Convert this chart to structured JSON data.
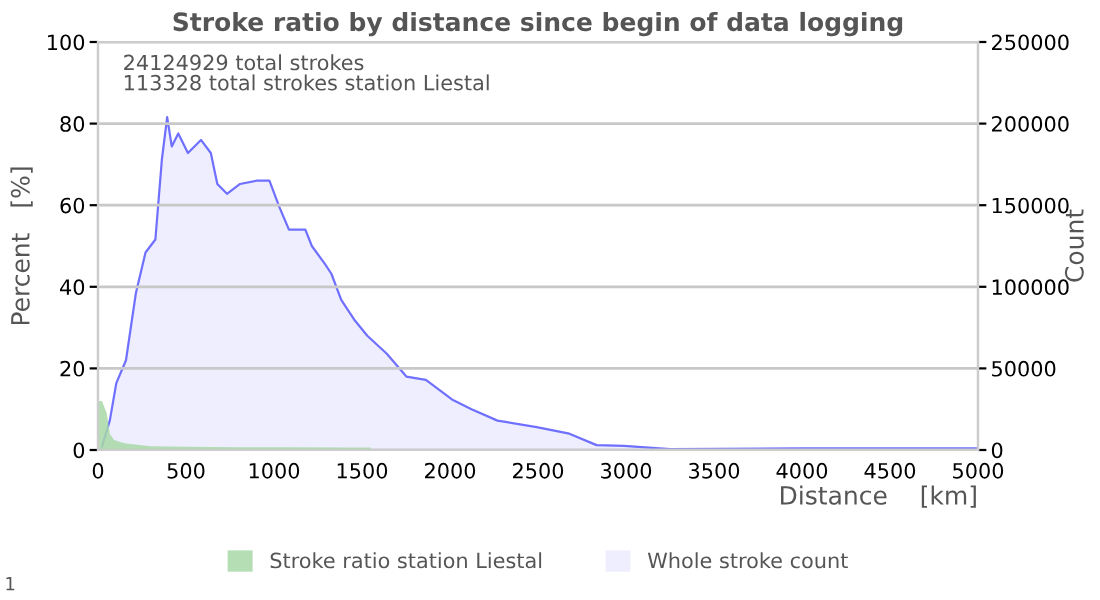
{
  "chart_data": {
    "type": "area",
    "title": "Stroke ratio by distance since begin of data logging",
    "xlabel": "Distance    [km]",
    "ylabel": "Percent   [%]",
    "y2label": "Count",
    "annotations": [
      "24124929 total strokes\n113328 total strokes station Liestal",
      "1"
    ],
    "series": [
      {
        "name": "Stroke ratio station Liestal",
        "color": "#a8d8a8",
        "x": [
          0,
          22,
          50,
          67,
          90,
          120,
          160,
          200,
          300,
          500,
          800,
          1100,
          1400,
          1550
        ],
        "values": [
          12,
          12,
          9,
          4,
          2.5,
          2,
          1.6,
          1.4,
          0.9,
          0.8,
          0.7,
          0.7,
          0.6,
          0.6
        ]
      },
      {
        "name": "Whole stroke count",
        "color": "#7070ff",
        "axis": "y2",
        "x": [
          22,
          67,
          104,
          159,
          215,
          270,
          326,
          363,
          393,
          419,
          456,
          511,
          585,
          641,
          678,
          733,
          807,
          900,
          974,
          1030,
          1085,
          1178,
          1215,
          1289,
          1326,
          1382,
          1455,
          1530,
          1641,
          1752,
          1863,
          2011,
          2122,
          2270,
          2492,
          2678,
          2833,
          2989,
          3250,
          4000,
          5000
        ],
        "values": [
          2000,
          18000,
          41000,
          55000,
          96000,
          121000,
          129000,
          178000,
          204000,
          186000,
          194000,
          182000,
          190000,
          182000,
          163000,
          157000,
          163000,
          165000,
          165000,
          149000,
          135000,
          135000,
          125000,
          114000,
          108000,
          92000,
          80000,
          70000,
          59000,
          45000,
          43000,
          31000,
          25000,
          18000,
          14000,
          10000,
          3000,
          2500,
          500,
          1000,
          1000
        ]
      }
    ],
    "xlim": [
      0,
      5000
    ],
    "xticks": [
      0,
      500,
      1000,
      1500,
      2000,
      2500,
      3000,
      3500,
      4000,
      4500,
      5000
    ],
    "ylim": [
      0,
      100
    ],
    "yticks": [
      0,
      20,
      40,
      60,
      80,
      100
    ],
    "y2lim": [
      0,
      250000
    ],
    "y2ticks": [
      0,
      50000,
      100000,
      150000,
      200000,
      250000
    ],
    "grid": "y",
    "legend": "bottom"
  }
}
